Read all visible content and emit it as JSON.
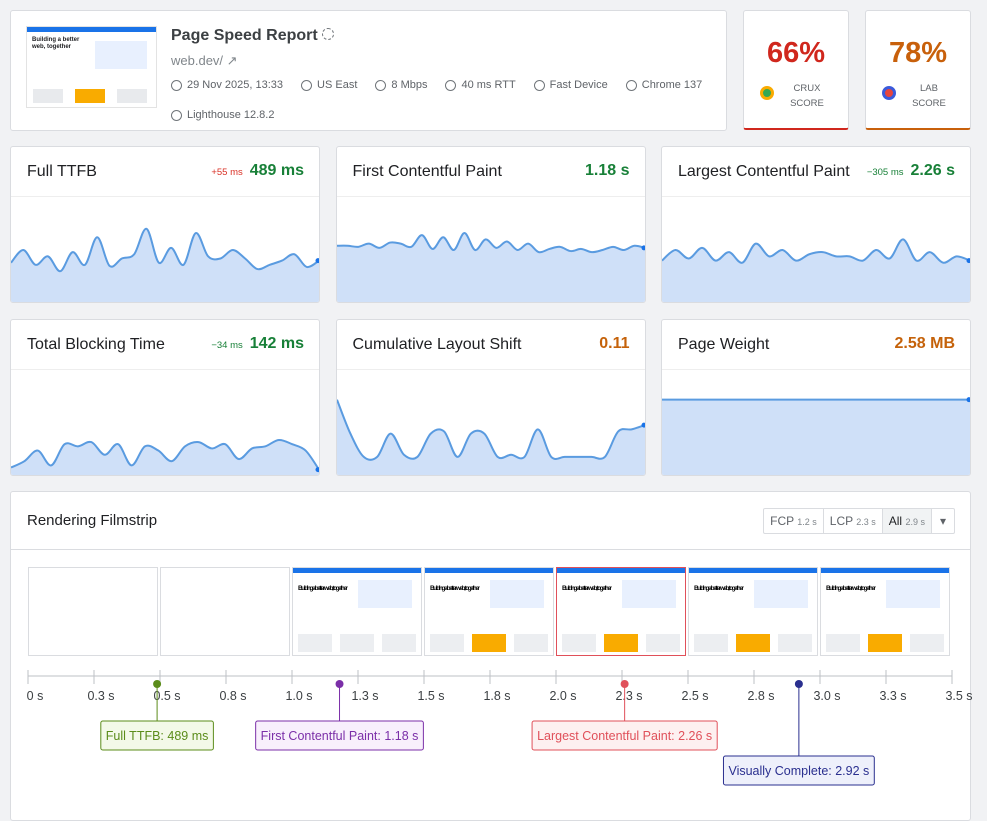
{
  "header": {
    "title": "Page Speed Report",
    "url": "web.dev/",
    "screenshot_heading": "Building a better web, together",
    "meta": [
      "29 Nov 2025, 13:33",
      "US East",
      "8 Mbps",
      "40 ms RTT",
      "Fast Device",
      "Chrome 137",
      "Lighthouse 12.8.2"
    ]
  },
  "scores": [
    {
      "value": "66%",
      "label": "CRUX SCORE",
      "color": "#d0271d"
    },
    {
      "value": "78%",
      "label": "LAB SCORE",
      "color": "#c8600b"
    }
  ],
  "metrics": [
    {
      "name": "Full TTFB",
      "delta": "+55 ms",
      "delta_color": "#d93025",
      "value": "489 ms",
      "color": "#188038",
      "ylim": [
        0,
        100
      ],
      "trend": [
        38,
        50,
        36,
        44,
        30,
        48,
        36,
        62,
        35,
        42,
        46,
        70,
        38,
        52,
        36,
        66,
        44,
        42,
        50,
        42,
        32,
        36,
        40,
        46,
        34,
        40
      ]
    },
    {
      "name": "First Contentful Paint",
      "value": "1.18 s",
      "color": "#188038",
      "ylim": [
        0,
        100
      ],
      "trend": [
        54,
        54,
        53,
        56,
        52,
        57,
        56,
        53,
        64,
        51,
        62,
        50,
        66,
        50,
        60,
        52,
        58,
        50,
        56,
        48,
        51,
        53,
        49,
        51,
        48,
        50,
        53,
        50,
        54,
        52
      ]
    },
    {
      "name": "Largest Contentful Paint",
      "delta": "−305 ms",
      "delta_color": "#188038",
      "value": "2.26 s",
      "color": "#188038",
      "ylim": [
        0,
        100
      ],
      "trend": [
        40,
        50,
        42,
        52,
        40,
        48,
        38,
        56,
        44,
        50,
        40,
        46,
        48,
        44,
        44,
        40,
        50,
        42,
        60,
        40,
        48,
        38,
        44,
        40
      ]
    },
    {
      "name": "Total Blocking Time",
      "delta": "−34 ms",
      "delta_color": "#188038",
      "value": "142 ms",
      "color": "#188038",
      "ylim": [
        0,
        100
      ],
      "trend": [
        8,
        14,
        24,
        10,
        30,
        28,
        32,
        20,
        30,
        10,
        28,
        24,
        14,
        28,
        32,
        26,
        30,
        16,
        26,
        28,
        34,
        30,
        24,
        6
      ]
    },
    {
      "name": "Cumulative Layout Shift",
      "value": "0.11",
      "color": "#c5620a",
      "ylim": [
        0,
        100
      ],
      "trend": [
        72,
        40,
        18,
        18,
        40,
        20,
        18,
        40,
        42,
        18,
        40,
        40,
        18,
        20,
        18,
        44,
        18,
        18,
        18,
        18,
        18,
        42,
        44,
        48
      ]
    },
    {
      "name": "Page Weight",
      "value": "2.58 MB",
      "color": "#c5620a",
      "ylim": [
        0,
        100
      ],
      "trend": [
        72,
        72
      ]
    }
  ],
  "filmstrip": {
    "title": "Rendering Filmstrip",
    "buttons": [
      {
        "label": "FCP",
        "value": "1.2 s"
      },
      {
        "label": "LCP",
        "value": "2.3 s"
      },
      {
        "label": "All",
        "value": "2.9 s"
      }
    ],
    "xlim": [
      0,
      3.5
    ],
    "xticks": [
      {
        "value": 0,
        "label": "0 s"
      },
      {
        "value": 0.25,
        "label": "0.3 s"
      },
      {
        "value": 0.5,
        "label": "0.5 s"
      },
      {
        "value": 0.75,
        "label": "0.8 s"
      },
      {
        "value": 1,
        "label": "1.0 s"
      },
      {
        "value": 1.25,
        "label": "1.3 s"
      },
      {
        "value": 1.5,
        "label": "1.5 s"
      },
      {
        "value": 1.75,
        "label": "1.8 s"
      },
      {
        "value": 2,
        "label": "2.0 s"
      },
      {
        "value": 2.25,
        "label": "2.3 s"
      },
      {
        "value": 2.5,
        "label": "2.5 s"
      },
      {
        "value": 2.75,
        "label": "2.8 s"
      },
      {
        "value": 3,
        "label": "3.0 s"
      },
      {
        "value": 3.25,
        "label": "3.3 s"
      },
      {
        "value": 3.5,
        "label": "3.5 s"
      }
    ],
    "markers": [
      {
        "label": "Full TTFB: 489 ms",
        "t": 0.489,
        "color": "#5b8c1a",
        "bg": "#f3f9e8"
      },
      {
        "label": "First Contentful Paint: 1.18 s",
        "t": 1.18,
        "color": "#7b2fa8",
        "bg": "#f8effc"
      },
      {
        "label": "Largest Contentful Paint: 2.26 s",
        "t": 2.26,
        "color": "#e0505a",
        "bg": "#fdf0f0"
      },
      {
        "label": "Visually Complete: 2.92 s",
        "t": 2.92,
        "color": "#2a2f8f",
        "bg": "#eef0fb"
      }
    ]
  }
}
